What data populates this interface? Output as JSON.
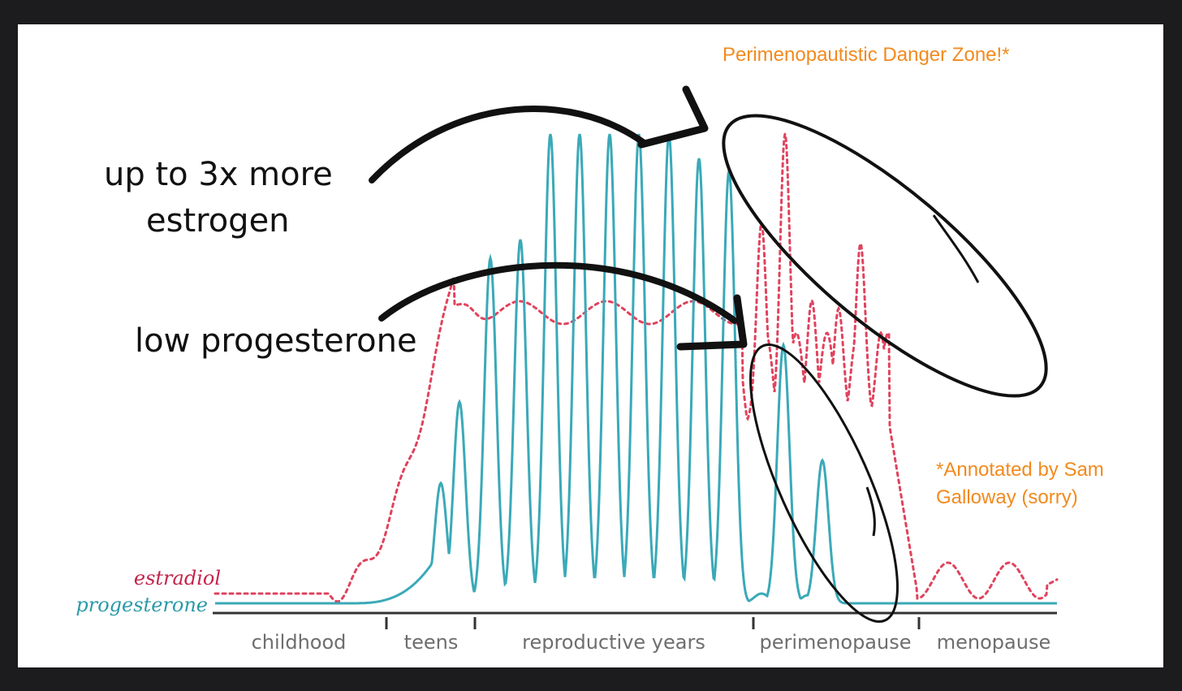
{
  "annotations": {
    "danger_zone": "Perimenopautistic Danger Zone!*",
    "credit_line1": "*Annotated by Sam",
    "credit_line2": "Galloway (sorry)",
    "estrogen_line1": "up to 3x more",
    "estrogen_line2": "estrogen",
    "progesterone_note": "low progesterone"
  },
  "colors": {
    "estradiol": "#e0435e",
    "progesterone": "#3aa9b8",
    "annotation_orange": "#f28a1e",
    "ink": "#111111",
    "axis": "#333333"
  },
  "chart_data": {
    "type": "line",
    "title": "",
    "xlabel": "",
    "ylabel": "",
    "grid": false,
    "legend_placement": "left, beside line starts",
    "categories": [
      "childhood",
      "teens",
      "reproductive years",
      "perimenopause",
      "menopause"
    ],
    "series": [
      {
        "name": "estradiol",
        "style": "dotted",
        "color": "#e0435e"
      },
      {
        "name": "progesterone",
        "style": "solid",
        "color": "#3aa9b8"
      }
    ]
  }
}
